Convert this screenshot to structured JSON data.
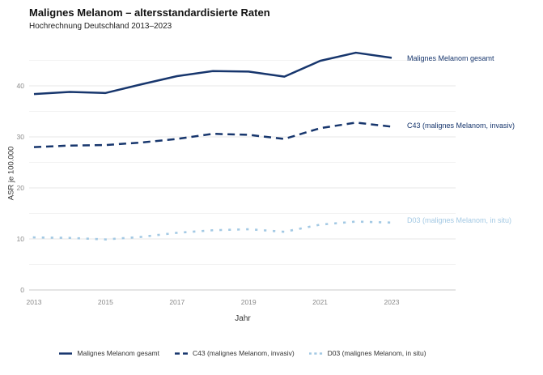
{
  "header": {
    "title": "Malignes Melanom – altersstandardisierte Raten",
    "subtitle": "Hochrechnung Deutschland 2013–2023"
  },
  "chart_data": {
    "type": "line",
    "x": [
      2013,
      2014,
      2015,
      2016,
      2017,
      2018,
      2019,
      2020,
      2021,
      2022,
      2023
    ],
    "series": [
      {
        "name": "Malignes Melanom gesamt",
        "line_style": "solid",
        "color": "#17366d",
        "values": [
          38.4,
          38.8,
          38.6,
          40.3,
          41.9,
          42.9,
          42.8,
          41.8,
          44.9,
          46.5,
          45.5
        ]
      },
      {
        "name": "C43 (malignes Melanom, invasiv)",
        "line_style": "dashed",
        "color": "#17366d",
        "values": [
          28.0,
          28.3,
          28.4,
          28.9,
          29.6,
          30.6,
          30.4,
          29.6,
          31.7,
          32.8,
          32.0
        ]
      },
      {
        "name": "D03 (malignes Melanom, in situ)",
        "line_style": "dotted",
        "color": "#a3c9e4",
        "values": [
          10.3,
          10.2,
          9.9,
          10.4,
          11.2,
          11.7,
          11.9,
          11.4,
          12.8,
          13.4,
          13.2
        ]
      }
    ],
    "xlabel": "Jahr",
    "ylabel": "ASR je 100.000",
    "ylim": [
      0,
      47
    ],
    "yticks": [
      0,
      10,
      20,
      30,
      40
    ],
    "xticks": [
      2013,
      2015,
      2017,
      2019,
      2021,
      2023
    ],
    "grid": "horizontal gridlines every 5 units, light gray",
    "legend_position": "bottom",
    "direct_labels_right": true
  }
}
